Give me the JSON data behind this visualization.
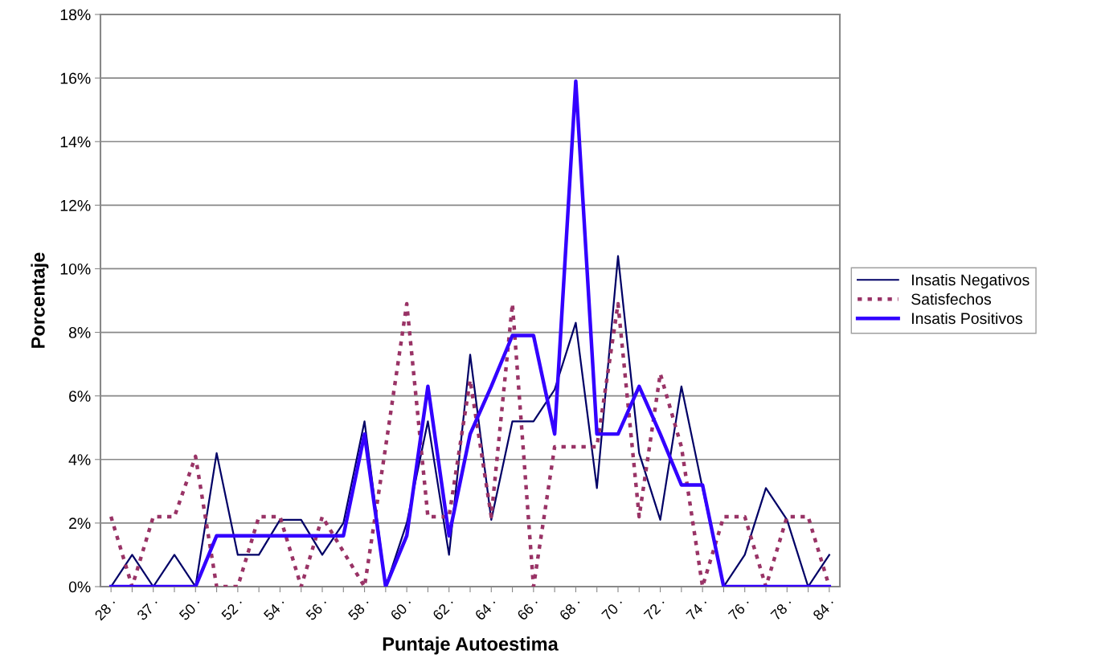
{
  "chart_data": {
    "type": "line",
    "xlabel": "Puntaje Autoestima",
    "ylabel": "Porcentaje",
    "categories": [
      "28 ·",
      null,
      "37 ·",
      null,
      "50 ·",
      null,
      "52 ·",
      null,
      "54 ·",
      null,
      "56 ·",
      null,
      "58 ·",
      null,
      "60 ·",
      null,
      "62 ·",
      null,
      "64 ·",
      null,
      "66 ·",
      null,
      "68 ·",
      null,
      "70 ·",
      null,
      "72 ·",
      null,
      "74 ·",
      null,
      "76 ·",
      null,
      "78 ·",
      null,
      "84 ·"
    ],
    "series": [
      {
        "name": "Insatis Negativos",
        "color": "#000066",
        "line_style": "solid",
        "values": [
          0,
          1.0,
          0,
          1.0,
          0,
          4.2,
          1.0,
          1.0,
          2.1,
          2.1,
          1.0,
          2.0,
          5.2,
          0,
          2.0,
          5.2,
          1.0,
          7.3,
          2.1,
          5.2,
          5.2,
          6.2,
          8.3,
          3.1,
          10.4,
          4.2,
          2.1,
          6.3,
          3.1,
          0,
          1.0,
          3.1,
          2.1,
          0,
          1.0
        ]
      },
      {
        "name": "Satisfechos",
        "color": "#993366",
        "line_style": "dashed",
        "values": [
          2.2,
          0,
          2.2,
          2.2,
          4.1,
          0,
          0,
          2.2,
          2.2,
          0,
          2.2,
          1.1,
          0,
          4.4,
          8.9,
          2.2,
          2.2,
          6.5,
          2.2,
          8.9,
          0,
          4.4,
          4.4,
          4.4,
          8.9,
          2.2,
          6.7,
          4.4,
          0,
          2.2,
          2.2,
          0,
          2.2,
          2.2,
          0
        ]
      },
      {
        "name": "Insatis Positivos",
        "color": "#3300ff",
        "line_style": "solid",
        "values": [
          0,
          0,
          0,
          0,
          0,
          1.6,
          1.6,
          1.6,
          1.6,
          1.6,
          1.6,
          1.6,
          4.8,
          0,
          1.6,
          6.3,
          1.6,
          4.8,
          6.3,
          7.9,
          7.9,
          4.8,
          15.9,
          4.8,
          4.8,
          6.3,
          4.8,
          3.2,
          3.2,
          0,
          0,
          0,
          0,
          0,
          0
        ]
      }
    ],
    "ylim": [
      0,
      18
    ],
    "yticks": [
      {
        "value": 0,
        "label": "0%"
      },
      {
        "value": 2,
        "label": "2%"
      },
      {
        "value": 4,
        "label": "4%"
      },
      {
        "value": 6,
        "label": "6%"
      },
      {
        "value": 8,
        "label": "8%"
      },
      {
        "value": 10,
        "label": "10%"
      },
      {
        "value": 12,
        "label": "12%"
      },
      {
        "value": 14,
        "label": "14%"
      },
      {
        "value": 16,
        "label": "16%"
      },
      {
        "value": 18,
        "label": "18%"
      }
    ],
    "grid": "y",
    "legend": "right"
  }
}
